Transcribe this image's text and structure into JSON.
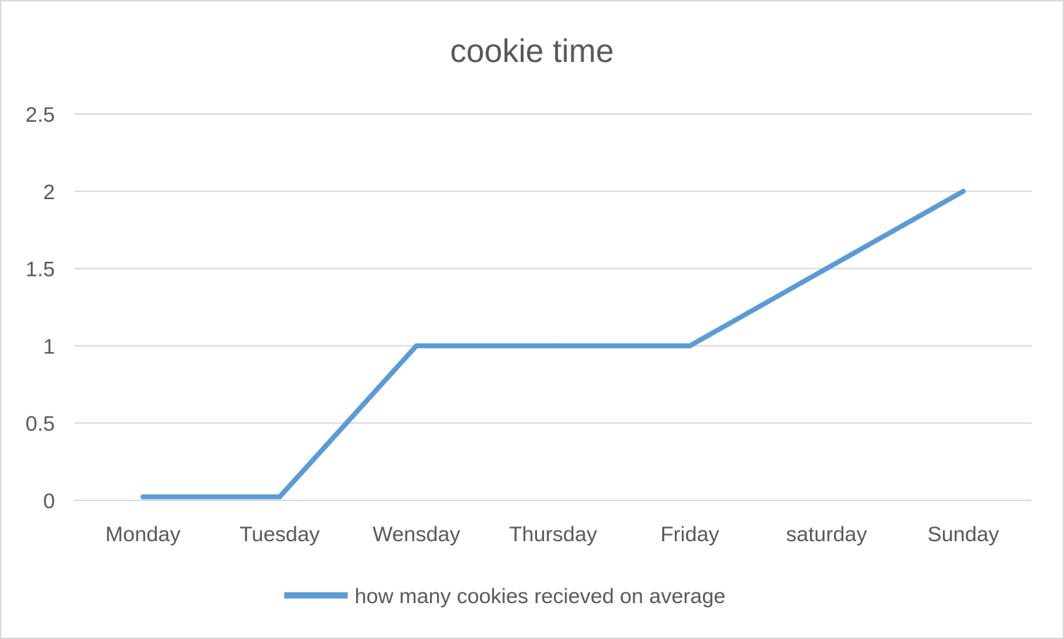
{
  "chart_data": {
    "type": "line",
    "title": "cookie time",
    "categories": [
      "Monday",
      "Tuesday",
      "Wensday",
      "Thursday",
      "Friday",
      "saturday",
      "Sunday"
    ],
    "series": [
      {
        "name": "how many cookies recieved on average",
        "values": [
          0,
          0,
          1,
          1,
          1,
          1.5,
          2
        ],
        "color": "#5b9bd5"
      }
    ],
    "y_ticks": [
      "0",
      "0.5",
      "1",
      "1.5",
      "2",
      "2.5"
    ],
    "ylim": [
      0,
      2.5
    ],
    "grid": "horizontal",
    "legend_position": "bottom"
  }
}
